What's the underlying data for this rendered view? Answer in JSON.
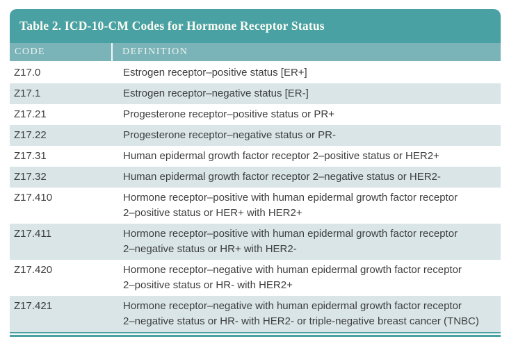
{
  "table": {
    "title": "Table 2. ICD-10-CM Codes for Hormone Receptor Status",
    "columns": {
      "code": "CODE",
      "definition": "DEFINITION"
    },
    "rows": [
      {
        "code": "Z17.0",
        "definition": "Estrogen receptor–positive status [ER+]"
      },
      {
        "code": "Z17.1",
        "definition": "Estrogen receptor–negative status [ER-]"
      },
      {
        "code": "Z17.21",
        "definition": "Progesterone receptor–positive status or PR+"
      },
      {
        "code": "Z17.22",
        "definition": "Progesterone receptor–negative status or PR-"
      },
      {
        "code": "Z17.31",
        "definition": "Human epidermal growth factor receptor 2–positive status or HER2+"
      },
      {
        "code": "Z17.32",
        "definition": "Human epidermal growth factor receptor 2–negative status or HER2-"
      },
      {
        "code": "Z17.410",
        "definition": "Hormone receptor–positive with human epidermal growth factor receptor\n2–positive status or HER+ with HER2+"
      },
      {
        "code": "Z17.411",
        "definition": "Hormone receptor–positive with human epidermal growth factor receptor\n2–negative status or HR+ with HER2-"
      },
      {
        "code": "Z17.420",
        "definition": "Hormone receptor–negative with human epidermal growth factor receptor\n2–positive status or HR- with HER2+"
      },
      {
        "code": "Z17.421",
        "definition": "Hormone receptor–negative with human epidermal growth factor receptor\n2–negative status or HR- with HER2- or triple-negative breast cancer (TNBC)"
      }
    ]
  },
  "colors": {
    "title_bar": "#49A1A3",
    "column_header_bar": "#7AB4B8",
    "shaded_row": "#D9E5E7",
    "body_text": "#3E3E3E",
    "title_text": "#FCFCF4"
  }
}
